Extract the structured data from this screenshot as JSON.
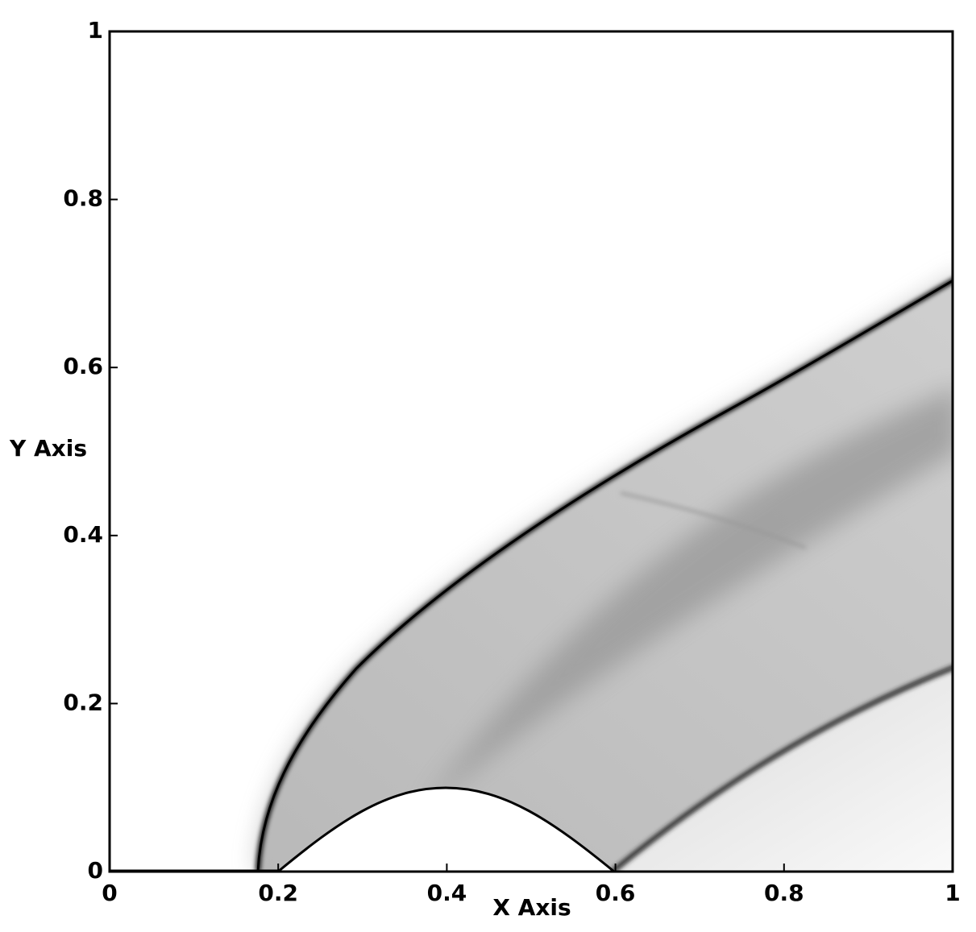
{
  "chart_data": {
    "type": "field",
    "xlabel": "X Axis",
    "ylabel": "Y Axis",
    "xlim": [
      0,
      1
    ],
    "ylim": [
      0,
      1
    ],
    "xticks": [
      0,
      0.2,
      0.4,
      0.6,
      0.8,
      1
    ],
    "yticks": [
      0,
      0.2,
      0.4,
      0.6,
      0.8,
      1
    ]
  }
}
